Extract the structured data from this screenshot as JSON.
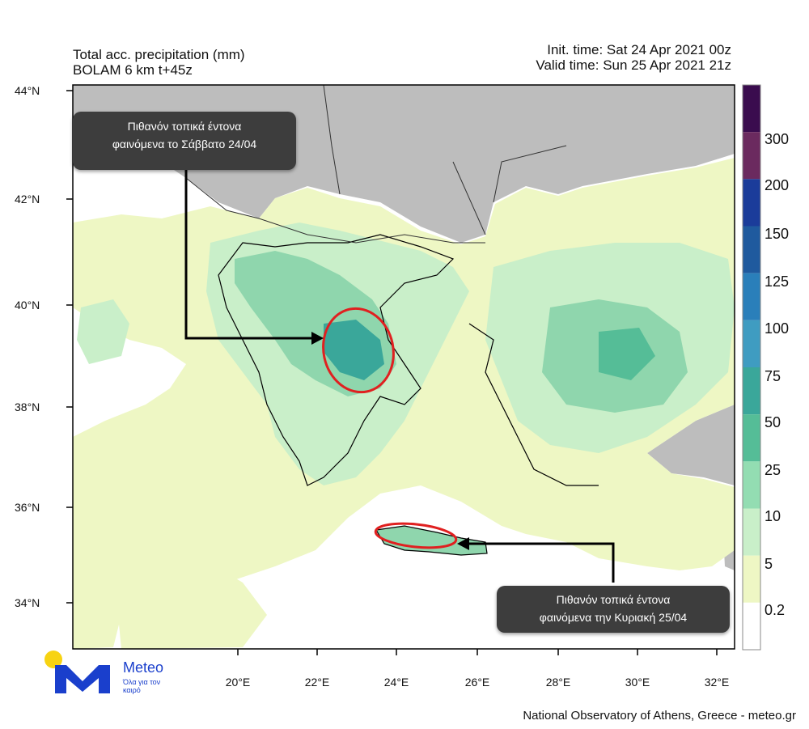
{
  "header": {
    "title": "Total acc. precipitation (mm)",
    "model": "BOLAM 6 km t+45z",
    "init_time": "Init. time: Sat 24 Apr 2021 00z",
    "valid_time": "Valid time: Sun 25 Apr 2021 21z"
  },
  "axes": {
    "lat_labels": [
      "44°N",
      "42°N",
      "40°N",
      "38°N",
      "36°N",
      "34°N"
    ],
    "lon_labels": [
      "20°E",
      "22°E",
      "24°E",
      "26°E",
      "28°E",
      "30°E",
      "32°E"
    ]
  },
  "colorbar": {
    "labels": [
      "300",
      "200",
      "150",
      "125",
      "100",
      "75",
      "50",
      "25",
      "10",
      "5",
      "0.2"
    ],
    "colors": [
      "#3a0c4e",
      "#6b2a5f",
      "#1b3c9a",
      "#1f5a9e",
      "#2a7fba",
      "#3f9cc1",
      "#3aa79a",
      "#55bd97",
      "#93ddb2",
      "#c9efc9",
      "#eef7c4",
      "#ffffff"
    ]
  },
  "map_colors": {
    "sea": "#ffffff",
    "outside_domain": "#bdbdbd",
    "light_rain": "#eef7c4",
    "mid_rain": "#c9efc9",
    "heavy_rain": "#8fd6ad",
    "very_heavy_rain": "#3aa79a",
    "ellipse": "#e02020"
  },
  "callouts": {
    "saturday_line1": "Πιθανόν τοπικά έντονα",
    "saturday_line2": "φαινόμενα  το Σάββατο 24/04",
    "sunday_line1": "Πιθανόν τοπικά έντονα",
    "sunday_line2": "φαινόμενα την Κυριακή 25/04"
  },
  "logo": {
    "name": "Meteo",
    "tagline": "Όλα για τον καιρό"
  },
  "footer": "National Observatory of Athens, Greece - meteo.gr"
}
